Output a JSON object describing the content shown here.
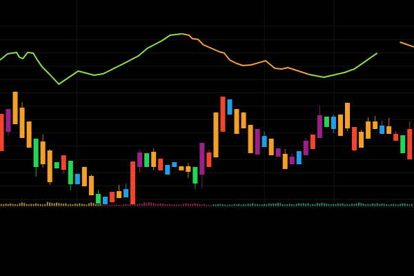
{
  "chart_data": {
    "type": "candlestick",
    "title": "",
    "xlabel": "",
    "ylabel": "",
    "grid": true,
    "background": "#000000",
    "ylim": [
      0,
      27
    ],
    "palette": {
      "red": "#f2452c",
      "orange": "#f3a024",
      "purple": "#9c1f8a",
      "green": "#22d655",
      "blue": "#1e9fe6"
    },
    "candles": [
      {
        "body": [
          8.1,
          13.5
        ],
        "color": "red"
      },
      {
        "body": [
          10.9,
          14.2
        ],
        "wick": [
          10.3,
          14.2
        ],
        "color": "purple"
      },
      {
        "body": [
          12.0,
          16.7
        ],
        "color": "orange"
      },
      {
        "body": [
          10.0,
          14.4
        ],
        "wick": [
          10.0,
          15.2
        ],
        "color": "orange"
      },
      {
        "body": [
          8.6,
          12.4
        ],
        "color": "orange"
      },
      {
        "body": [
          5.8,
          9.9
        ],
        "wick": [
          4.4,
          9.9
        ],
        "color": "green"
      },
      {
        "body": [
          6.2,
          9.5
        ],
        "wick": [
          5.7,
          10.5
        ],
        "color": "orange"
      },
      {
        "body": [
          3.6,
          8.2
        ],
        "wick": [
          3.2,
          8.4
        ],
        "color": "orange"
      },
      {
        "body": [
          5.6,
          6.5
        ],
        "color": "green"
      },
      {
        "body": [
          5.4,
          7.5
        ],
        "wick": [
          4.9,
          7.5
        ],
        "color": "red"
      },
      {
        "body": [
          3.3,
          6.7
        ],
        "wick": [
          2.4,
          6.7
        ],
        "color": "green"
      },
      {
        "body": [
          3.3,
          4.8
        ],
        "color": "blue"
      },
      {
        "body": [
          3.0,
          5.8
        ],
        "color": "orange"
      },
      {
        "body": [
          1.7,
          4.5
        ],
        "wick": [
          1.7,
          4.7
        ],
        "color": "orange"
      },
      {
        "body": [
          0.5,
          1.9
        ],
        "wick": [
          0.5,
          2.5
        ],
        "color": "green"
      },
      {
        "body": [
          0.4,
          1.5
        ],
        "color": "blue"
      },
      {
        "body": [
          0.7,
          2.2
        ],
        "color": "red"
      },
      {
        "body": [
          1.3,
          2.3
        ],
        "wick": [
          1.3,
          3.2
        ],
        "color": "orange"
      },
      {
        "body": [
          1.4,
          2.6
        ],
        "wick": [
          1.4,
          3.4
        ],
        "color": "blue"
      },
      {
        "body": [
          0.4,
          6.6
        ],
        "color": "red"
      },
      {
        "body": [
          5.8,
          7.9
        ],
        "wick": [
          5.0,
          8.3
        ],
        "color": "purple"
      },
      {
        "body": [
          5.8,
          7.8
        ],
        "color": "green"
      },
      {
        "body": [
          5.8,
          8.0
        ],
        "wick": [
          5.3,
          8.5
        ],
        "color": "orange"
      },
      {
        "body": [
          5.3,
          7.0
        ],
        "color": "red"
      },
      {
        "body": [
          4.7,
          6.1
        ],
        "color": "blue"
      },
      {
        "body": [
          5.8,
          6.5
        ],
        "color": "blue"
      },
      {
        "body": [
          5.3,
          5.9
        ],
        "color": "orange"
      },
      {
        "body": [
          5.1,
          5.9
        ],
        "wick": [
          4.2,
          6.4
        ],
        "color": "orange"
      },
      {
        "body": [
          3.4,
          5.8
        ],
        "wick": [
          2.6,
          5.8
        ],
        "color": "green"
      },
      {
        "body": [
          4.7,
          9.3
        ],
        "wick": [
          2.7,
          9.3
        ],
        "color": "purple"
      },
      {
        "body": [
          5.8,
          7.9
        ],
        "wick": [
          5.8,
          8.3
        ],
        "color": "red"
      },
      {
        "body": [
          7.2,
          13.7
        ],
        "color": "orange"
      },
      {
        "body": [
          10.9,
          16.0
        ],
        "color": "red"
      },
      {
        "body": [
          13.4,
          15.6
        ],
        "color": "blue"
      },
      {
        "body": [
          10.6,
          14.2
        ],
        "color": "orange"
      },
      {
        "body": [
          11.4,
          13.7
        ],
        "color": "orange"
      },
      {
        "body": [
          7.8,
          11.9
        ],
        "color": "orange"
      },
      {
        "body": [
          7.6,
          11.3
        ],
        "color": "purple"
      },
      {
        "body": [
          8.7,
          10.3
        ],
        "wick": [
          8.7,
          10.9
        ],
        "color": "blue"
      },
      {
        "body": [
          7.5,
          9.9
        ],
        "color": "orange"
      },
      {
        "body": [
          7.3,
          8.5
        ],
        "color": "purple"
      },
      {
        "body": [
          5.5,
          7.7
        ],
        "wick": [
          5.5,
          8.4
        ],
        "color": "orange"
      },
      {
        "body": [
          6.2,
          7.3
        ],
        "wick": [
          6.2,
          7.8
        ],
        "color": "purple"
      },
      {
        "body": [
          6.2,
          8.1
        ],
        "color": "blue"
      },
      {
        "body": [
          7.5,
          9.6
        ],
        "wick": [
          7.5,
          10.0
        ],
        "color": "purple"
      },
      {
        "body": [
          8.4,
          10.5
        ],
        "color": "red"
      },
      {
        "body": [
          10.0,
          13.3
        ],
        "wick": [
          10.0,
          14.7
        ],
        "color": "purple"
      },
      {
        "body": [
          11.6,
          13.1
        ],
        "color": "green"
      },
      {
        "body": [
          11.3,
          13.1
        ],
        "wick": [
          10.7,
          13.4
        ],
        "color": "blue"
      },
      {
        "body": [
          10.3,
          13.4
        ],
        "color": "orange"
      },
      {
        "body": [
          11.4,
          15.1
        ],
        "wick": [
          11.0,
          15.1
        ],
        "color": "orange"
      },
      {
        "body": [
          8.2,
          11.6
        ],
        "color": "red"
      },
      {
        "body": [
          8.6,
          10.9
        ],
        "wick": [
          8.6,
          11.2
        ],
        "color": "orange"
      },
      {
        "body": [
          9.9,
          12.4
        ],
        "wick": [
          9.9,
          13.0
        ],
        "color": "orange"
      },
      {
        "body": [
          11.3,
          12.4
        ],
        "wick": [
          11.3,
          13.2
        ],
        "color": "orange"
      },
      {
        "body": [
          10.6,
          11.8
        ],
        "wick": [
          10.6,
          12.5
        ],
        "color": "blue"
      },
      {
        "body": [
          10.6,
          11.7
        ],
        "wick": [
          10.6,
          12.9
        ],
        "color": "orange"
      },
      {
        "body": [
          9.6,
          10.6
        ],
        "wick": [
          9.6,
          11.0
        ],
        "color": "red"
      },
      {
        "body": [
          7.8,
          10.4
        ],
        "color": "green"
      },
      {
        "body": [
          6.9,
          11.3
        ],
        "wick": [
          6.9,
          12.4
        ],
        "color": "red"
      }
    ],
    "line": {
      "points": [
        [
          -0.2,
          21.3
        ],
        [
          0.9,
          22.2
        ],
        [
          2.2,
          22.4
        ],
        [
          2.6,
          21.7
        ],
        [
          3.1,
          21.5
        ],
        [
          3.8,
          22.4
        ],
        [
          4.6,
          22.3
        ],
        [
          5.2,
          21.3
        ],
        [
          5.9,
          20.3
        ],
        [
          6.9,
          19.3
        ],
        [
          8.3,
          17.8
        ],
        [
          11.1,
          19.7
        ],
        [
          13.4,
          19.1
        ],
        [
          14.7,
          19.3
        ],
        [
          17.7,
          20.8
        ],
        [
          19.8,
          21.9
        ],
        [
          21.1,
          23.0
        ],
        [
          23.2,
          24.1
        ],
        [
          24.4,
          24.9
        ],
        [
          26.1,
          25.1
        ],
        [
          27.1,
          24.9
        ],
        [
          27.6,
          24.4
        ],
        [
          28.4,
          24.3
        ],
        [
          29.2,
          23.5
        ],
        [
          31.5,
          22.5
        ],
        [
          32.2,
          22.3
        ],
        [
          33.0,
          21.3
        ],
        [
          34.0,
          20.8
        ],
        [
          34.9,
          20.5
        ],
        [
          36.1,
          20.6
        ],
        [
          38.2,
          21.2
        ],
        [
          39.5,
          20.1
        ],
        [
          40.5,
          20.0
        ],
        [
          41.4,
          20.2
        ],
        [
          44.5,
          19.2
        ],
        [
          46.6,
          18.8
        ],
        [
          49.6,
          19.5
        ],
        [
          51.0,
          20.0
        ],
        [
          54.3,
          22.3
        ],
        [
          57.6,
          23.9
        ],
        [
          59.6,
          23.2
        ]
      ],
      "segments": [
        {
          "from": -0.2,
          "to": 26.1,
          "color": "#8ee24c"
        },
        {
          "from": 26.1,
          "to": 44.5,
          "color": "#f0a040"
        },
        {
          "from": 44.5,
          "to": 55.0,
          "color": "#8ee24c"
        },
        {
          "from": 55.0,
          "to": 59.6,
          "color": "#f0a040"
        }
      ]
    },
    "volume": {
      "values": [
        3,
        4,
        3,
        5,
        3,
        4,
        3,
        6,
        5,
        4,
        3,
        4,
        3,
        5,
        3,
        2,
        2,
        2,
        3,
        3,
        4,
        6,
        5,
        4,
        3,
        3,
        3,
        4,
        4,
        3,
        2,
        3,
        3,
        2,
        3,
        3,
        4,
        3,
        3,
        4,
        5,
        3,
        3,
        4,
        4,
        3,
        5,
        4,
        3,
        4,
        3,
        4,
        5,
        3,
        4,
        4,
        3,
        3,
        4,
        3
      ],
      "colors": [
        {
          "from": 0,
          "to": 14,
          "color": "#c9a54a"
        },
        {
          "from": 15,
          "to": 30,
          "color": "#a3285e"
        },
        {
          "from": 31,
          "to": 59,
          "color": "#3d9c7a"
        }
      ]
    }
  }
}
